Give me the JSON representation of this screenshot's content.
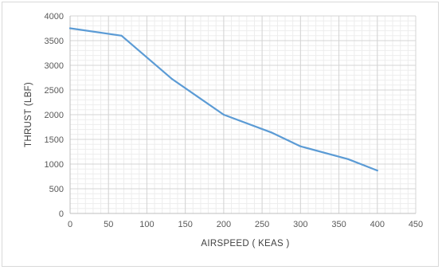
{
  "chart_data": {
    "type": "line",
    "title": "",
    "xlabel": "AIRSPEED  ( KEAS )",
    "ylabel": "THRUST (LBF)",
    "xlim": [
      0,
      450
    ],
    "ylim": [
      0,
      4000
    ],
    "x_ticks": [
      0,
      50,
      100,
      150,
      200,
      250,
      300,
      350,
      400,
      450
    ],
    "y_ticks": [
      0,
      500,
      1000,
      1500,
      2000,
      2500,
      3000,
      3500,
      4000
    ],
    "grid": true,
    "legend": "none",
    "series": [
      {
        "color": "#5b9bd5",
        "points": [
          {
            "x": 0,
            "y": 3750
          },
          {
            "x": 67,
            "y": 3600
          },
          {
            "x": 133,
            "y": 2720
          },
          {
            "x": 200,
            "y": 2000
          },
          {
            "x": 262,
            "y": 1640
          },
          {
            "x": 300,
            "y": 1360
          },
          {
            "x": 362,
            "y": 1100
          },
          {
            "x": 400,
            "y": 870
          }
        ]
      }
    ]
  }
}
